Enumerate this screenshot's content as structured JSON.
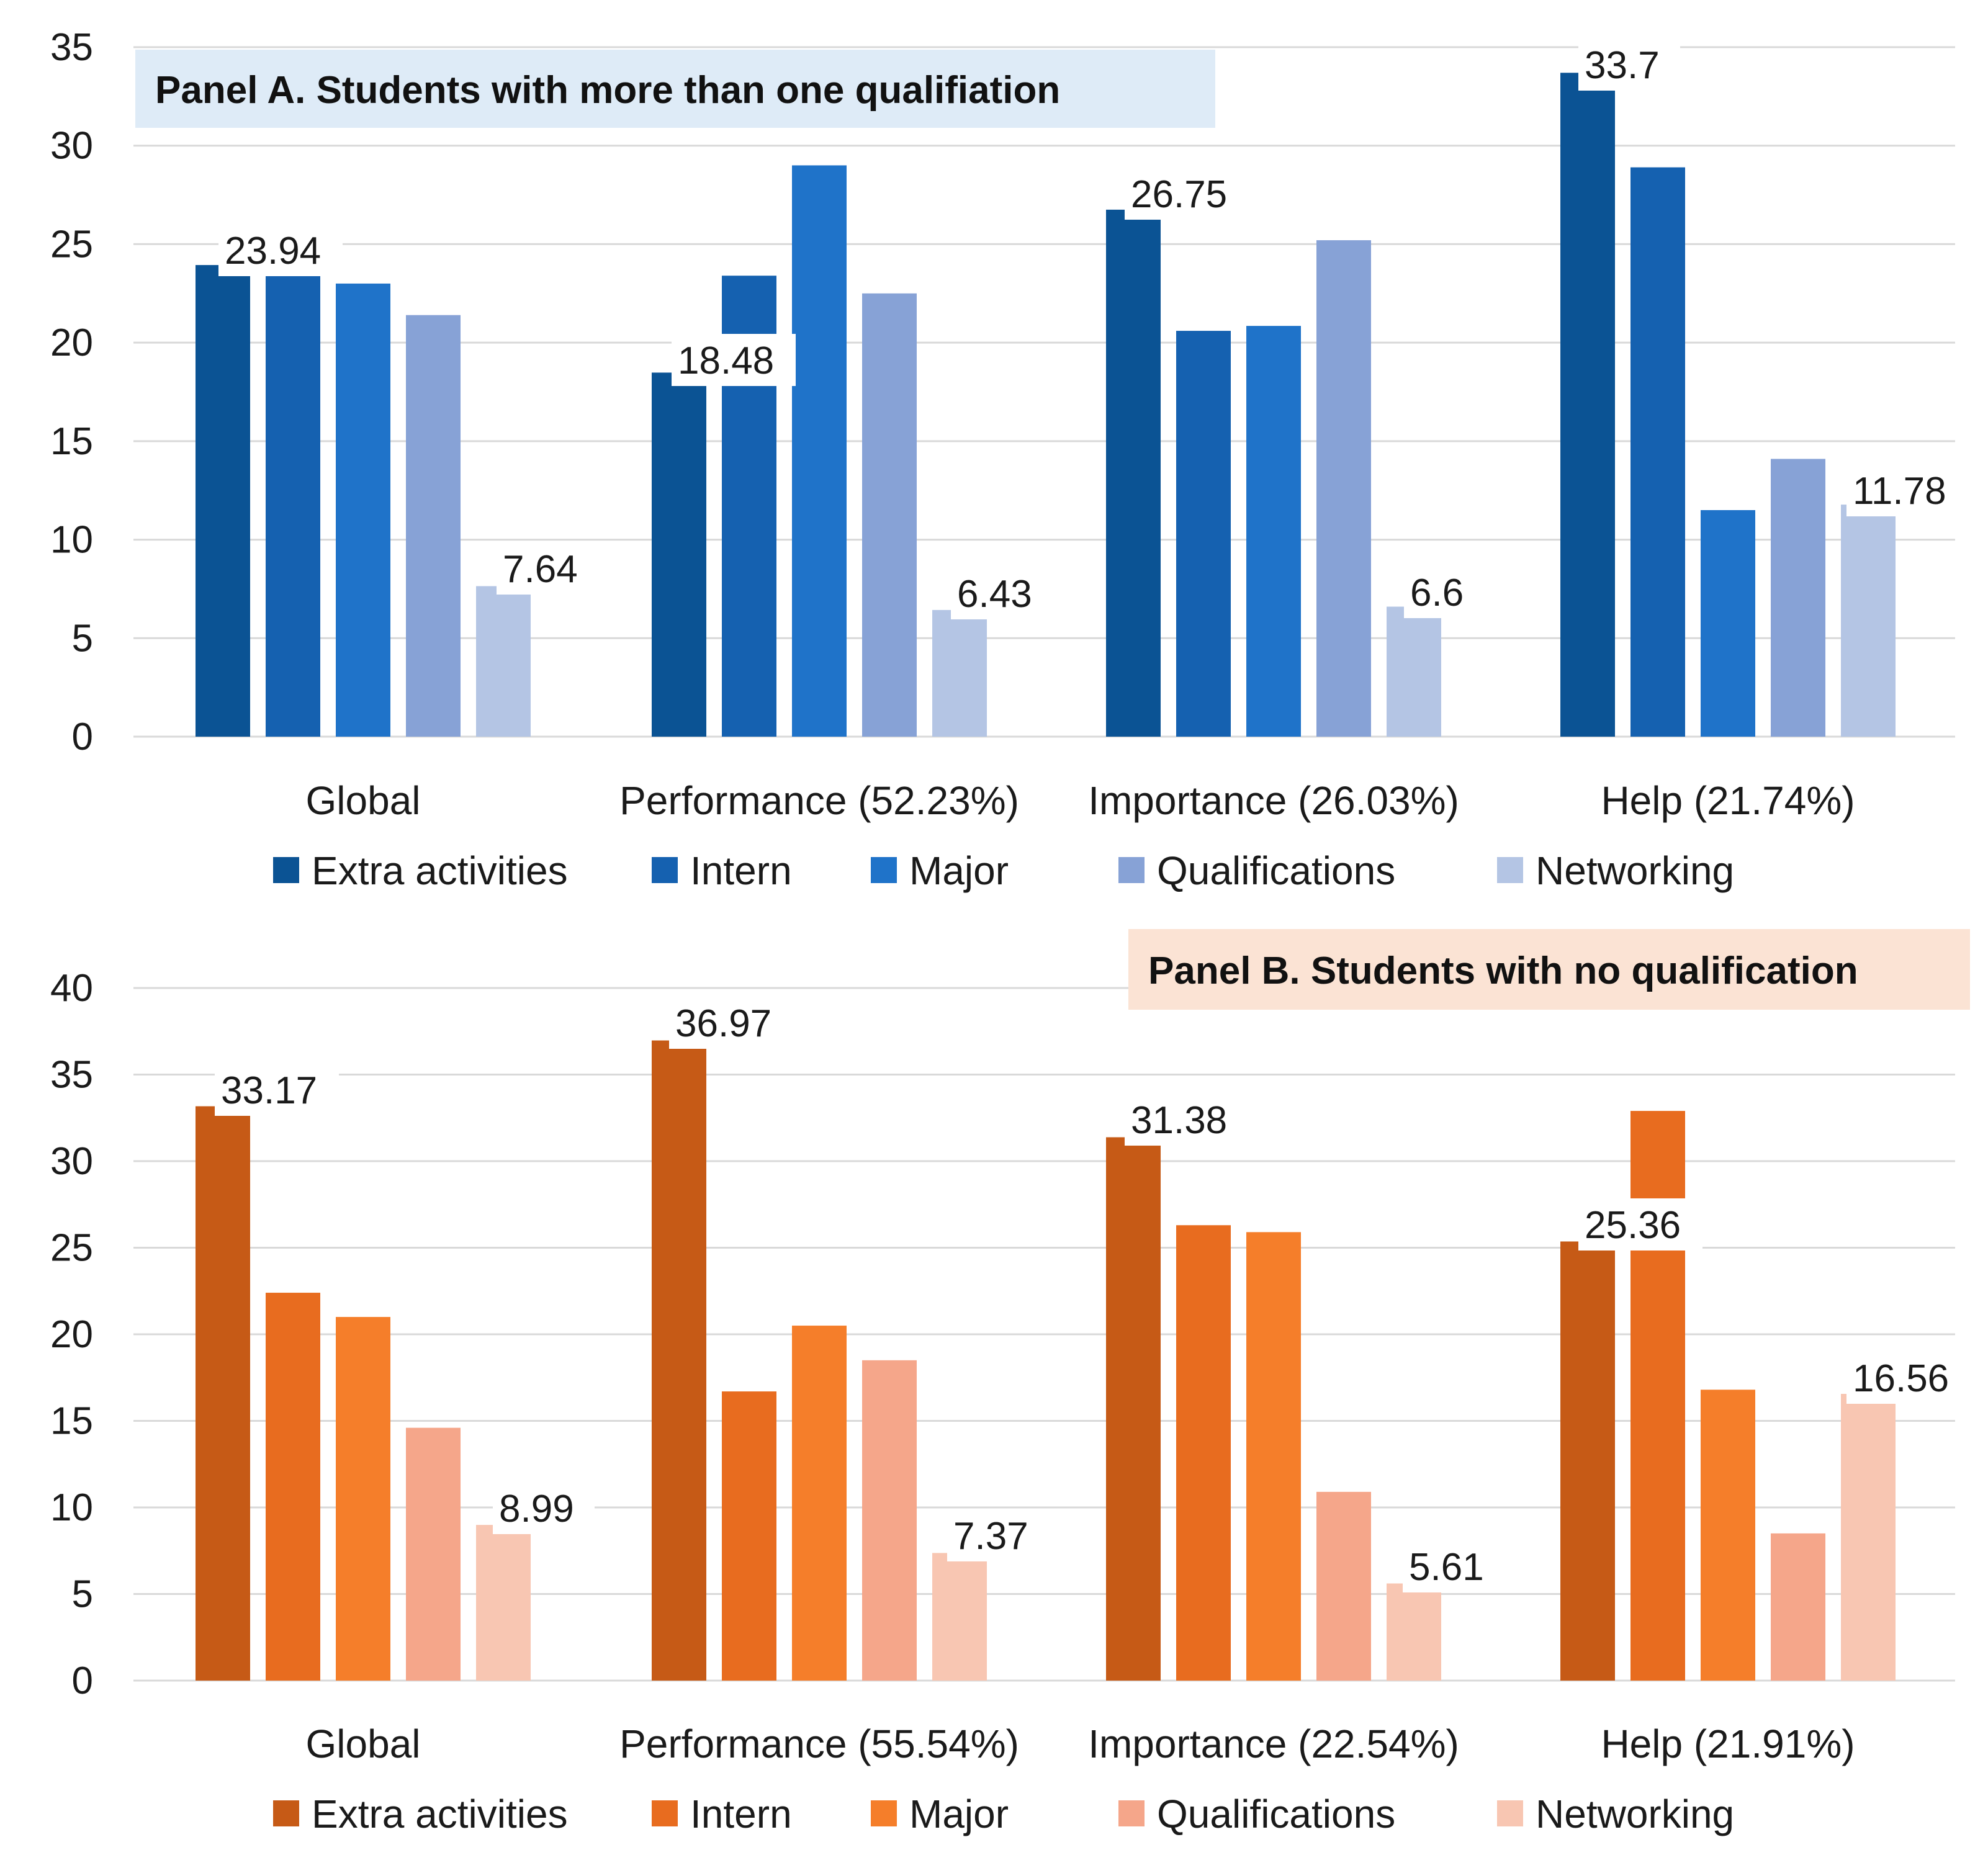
{
  "chart_data": [
    {
      "type": "bar",
      "title": "Panel A. Students with more than one qualifiation",
      "title_bg": "#deebf7",
      "categories": [
        "Global",
        "Performance (52.23%)",
        "Importance (26.03%)",
        "Help (21.74%)"
      ],
      "ylim": [
        0,
        35
      ],
      "yticks": [
        0,
        5,
        10,
        15,
        20,
        25,
        30,
        35
      ],
      "grid": true,
      "legend_position": "bottom",
      "series": [
        {
          "name": "Extra activities",
          "color": "#0b5394",
          "values": [
            23.94,
            18.48,
            26.75,
            33.7
          ]
        },
        {
          "name": "Intern",
          "color": "#1561b0",
          "values": [
            23.94,
            23.4,
            20.6,
            28.9
          ]
        },
        {
          "name": "Major",
          "color": "#1f73c9",
          "values": [
            23.0,
            29.0,
            20.85,
            11.5
          ]
        },
        {
          "name": "Qualifications",
          "color": "#87a2d6",
          "values": [
            21.4,
            22.5,
            25.2,
            14.1
          ]
        },
        {
          "name": "Networking",
          "color": "#b4c5e4",
          "values": [
            7.64,
            6.43,
            6.6,
            11.78
          ]
        }
      ],
      "data_labels": [
        {
          "series": 0,
          "category": 0,
          "text": "23.94"
        },
        {
          "series": 4,
          "category": 0,
          "text": "7.64"
        },
        {
          "series": 0,
          "category": 1,
          "text": "18.48"
        },
        {
          "series": 4,
          "category": 1,
          "text": "6.43"
        },
        {
          "series": 0,
          "category": 2,
          "text": "26.75"
        },
        {
          "series": 4,
          "category": 2,
          "text": "6.6"
        },
        {
          "series": 0,
          "category": 3,
          "text": "33.7"
        },
        {
          "series": 4,
          "category": 3,
          "text": "11.78"
        }
      ]
    },
    {
      "type": "bar",
      "title": "Panel B. Students with no qualification",
      "title_bg": "#fbe3d4",
      "categories": [
        "Global",
        "Performance (55.54%)",
        "Importance (22.54%)",
        "Help (21.91%)"
      ],
      "ylim": [
        0,
        40
      ],
      "yticks": [
        0,
        5,
        10,
        15,
        20,
        25,
        30,
        35,
        40
      ],
      "grid": true,
      "legend_position": "bottom",
      "series": [
        {
          "name": "Extra activities",
          "color": "#c65a16",
          "values": [
            33.17,
            36.97,
            31.38,
            25.36
          ]
        },
        {
          "name": "Intern",
          "color": "#e86c1f",
          "values": [
            22.4,
            16.7,
            26.3,
            32.9
          ]
        },
        {
          "name": "Major",
          "color": "#f57e2a",
          "values": [
            21.0,
            20.5,
            25.9,
            16.8
          ]
        },
        {
          "name": "Qualifications",
          "color": "#f5a68a",
          "values": [
            14.6,
            18.5,
            10.9,
            8.5
          ]
        },
        {
          "name": "Networking",
          "color": "#f8c6b2",
          "values": [
            8.99,
            7.37,
            5.61,
            16.56
          ]
        }
      ],
      "data_labels": [
        {
          "series": 0,
          "category": 0,
          "text": "33.17"
        },
        {
          "series": 4,
          "category": 0,
          "text": "8.99"
        },
        {
          "series": 0,
          "category": 1,
          "text": "36.97"
        },
        {
          "series": 4,
          "category": 1,
          "text": "7.37"
        },
        {
          "series": 0,
          "category": 2,
          "text": "31.38"
        },
        {
          "series": 4,
          "category": 2,
          "text": "5.61"
        },
        {
          "series": 0,
          "category": 3,
          "text": "25.36"
        },
        {
          "series": 4,
          "category": 3,
          "text": "16.56"
        }
      ]
    }
  ]
}
